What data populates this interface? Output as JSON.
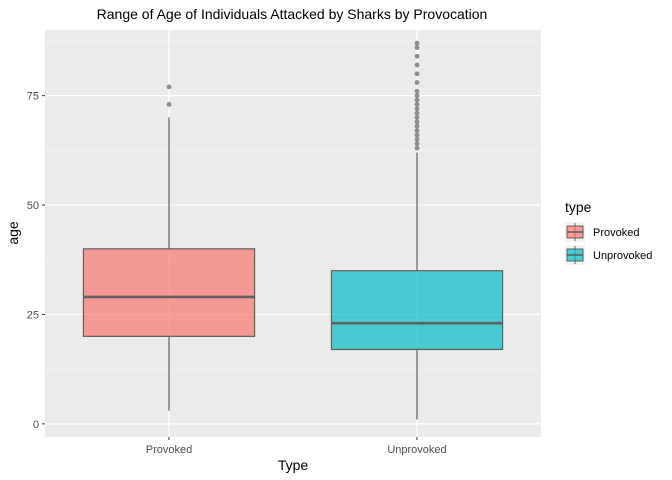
{
  "chart_data": {
    "type": "boxplot",
    "title": "Range of Age of Individuals Attacked by Sharks by Provocation",
    "xlabel": "Type",
    "ylabel": "age",
    "categories": [
      "Provoked",
      "Unprovoked"
    ],
    "ylim": [
      -3,
      90
    ],
    "yticks": [
      0,
      25,
      50,
      75
    ],
    "grid": true,
    "legend": {
      "title": "type",
      "position": "right",
      "entries": [
        "Provoked",
        "Unprovoked"
      ]
    },
    "series": [
      {
        "name": "Provoked",
        "color": "#F8766D",
        "whisker_low": 3,
        "q1": 20,
        "median": 29,
        "q3": 40,
        "whisker_high": 70,
        "outliers": [
          73,
          77
        ]
      },
      {
        "name": "Unprovoked",
        "color": "#00BFC4",
        "whisker_low": 1,
        "q1": 17,
        "median": 23,
        "q3": 35,
        "whisker_high": 62,
        "outliers": [
          63,
          64,
          65,
          66,
          67,
          68,
          69,
          70,
          71,
          72,
          73,
          74,
          75,
          76,
          78,
          80,
          82,
          84,
          86,
          87
        ]
      }
    ]
  }
}
